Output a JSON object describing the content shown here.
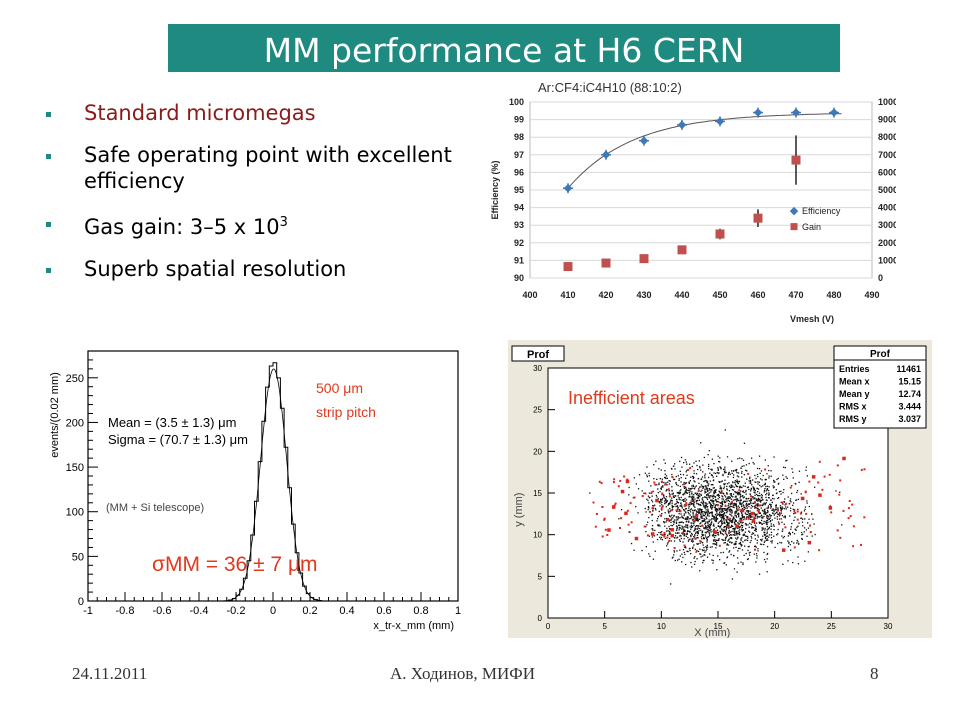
{
  "slide": {
    "title": "MM performance at H6 CERN",
    "bullets": [
      {
        "text": "Standard micromegas",
        "color": "#8b1a1a"
      },
      {
        "text": "Safe operating point with excellent efficiency",
        "color": "#000000"
      },
      {
        "text": "Gas gain: 3–5 x 10",
        "sup": "3",
        "color": "#000000"
      },
      {
        "text": "Superb spatial resolution",
        "color": "#000000"
      }
    ],
    "footer": {
      "date": "24.11.2011",
      "author": "А. Ходинов, МИФИ",
      "page": "8"
    },
    "accent_color": "#1f8a80"
  },
  "chart_data": [
    {
      "type": "scatter",
      "title": "Ar:CF4:iC4H10 (88:10:2)",
      "xlabel": "Vmesh (V)",
      "ylabel": "Efficiency (%)",
      "y2label": "Gain",
      "xlim": [
        400,
        490
      ],
      "ylim": [
        90,
        100
      ],
      "y2lim": [
        0,
        10000
      ],
      "xticks": [
        "400",
        "410",
        "420",
        "430",
        "440",
        "450",
        "460",
        "470",
        "480",
        "490"
      ],
      "yticks": [
        "90",
        "91",
        "92",
        "93",
        "94",
        "95",
        "96",
        "97",
        "98",
        "99",
        "100"
      ],
      "y2ticks": [
        "0",
        "1000",
        "2000",
        "3000",
        "4000",
        "5000",
        "6000",
        "7000",
        "8000",
        "9000",
        "10000"
      ],
      "legend": [
        "Efficiency",
        "Gain"
      ],
      "legend_placement": "right",
      "series": [
        {
          "name": "Efficiency",
          "color": "#3d78b8",
          "axis": "left",
          "points": [
            [
              410,
              95.1
            ],
            [
              420,
              97.0
            ],
            [
              430,
              97.8
            ],
            [
              440,
              98.7
            ],
            [
              450,
              98.9
            ],
            [
              460,
              99.4
            ],
            [
              470,
              99.4
            ],
            [
              480,
              99.4
            ]
          ]
        },
        {
          "name": "Gain",
          "color": "#c0504d",
          "axis": "right",
          "points": [
            [
              410,
              650
            ],
            [
              420,
              850
            ],
            [
              430,
              1100
            ],
            [
              440,
              1600
            ],
            [
              450,
              2500
            ],
            [
              460,
              3400
            ],
            [
              470,
              6700
            ]
          ],
          "err": [
            0,
            0,
            0,
            0,
            300,
            500,
            1400
          ]
        }
      ]
    },
    {
      "type": "histogram",
      "ylabel": "events/(0.02 mm)",
      "xlabel": "x_tr-x_mm (mm)",
      "xlim": [
        -1,
        1
      ],
      "ylim": [
        0,
        280
      ],
      "xticks": [
        "-1",
        "-0.8",
        "-0.6",
        "-0.4",
        "-0.2",
        "0",
        "0.2",
        "0.4",
        "0.6",
        "0.8",
        "1"
      ],
      "yticks": [
        "0",
        "50",
        "100",
        "150",
        "200",
        "250"
      ],
      "stats": [
        "Mean = (3.5 ± 1.3) μm",
        "Sigma = (70.7 ± 1.3) μm"
      ],
      "note": "(MM + Si telescope)",
      "pitch": [
        "500 μm",
        "strip pitch"
      ],
      "result": "σMM = 36 ± 7 μm",
      "mean": 0.0035,
      "sigma": 0.0707,
      "peak": 268
    },
    {
      "type": "scatter",
      "title": "Prof",
      "panel_title": "Prof",
      "xlabel": "X (mm)",
      "ylabel": "y (mm)",
      "xlim": [
        0,
        30
      ],
      "ylim": [
        0,
        30
      ],
      "xticks": [
        "0",
        "5",
        "10",
        "15",
        "20",
        "25",
        "30"
      ],
      "yticks": [
        "0",
        "5",
        "10",
        "15",
        "20",
        "25",
        "30"
      ],
      "stats": [
        {
          "label": "Entries",
          "value": "11461"
        },
        {
          "label": "Mean x",
          "value": "15.15"
        },
        {
          "label": "Mean y",
          "value": "12.74"
        },
        {
          "label": "RMS x",
          "value": "3.444"
        },
        {
          "label": "RMS y",
          "value": "3.037"
        }
      ],
      "annotation": "Inefficient areas",
      "annotation_color": "#e03a1e",
      "dense_region": {
        "x": [
          8,
          23
        ],
        "y": [
          7,
          19
        ]
      },
      "mean": [
        15.15,
        12.74
      ],
      "rms": [
        3.444,
        3.037
      ],
      "entries": 11461
    }
  ]
}
